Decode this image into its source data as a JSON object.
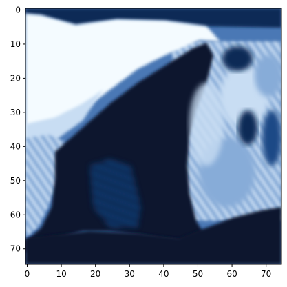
{
  "figure": {
    "type": "image",
    "colormap": "Blues_r",
    "colors": [
      "#08172e",
      "#0b2a57",
      "#1e4a86",
      "#4a78b5",
      "#87acd8",
      "#c8ddf3",
      "#f4fbff"
    ],
    "xlim": [
      -0.5,
      74.5
    ],
    "ylim": [
      74.5,
      -0.5
    ],
    "x_ticks": [
      0,
      10,
      20,
      30,
      40,
      50,
      60,
      70
    ],
    "y_ticks": [
      0,
      10,
      20,
      30,
      40,
      50,
      60,
      70
    ],
    "x_tick_labels": [
      "0",
      "10",
      "20",
      "30",
      "40",
      "50",
      "60",
      "70"
    ],
    "y_tick_labels": [
      "0",
      "10",
      "20",
      "30",
      "40",
      "50",
      "60",
      "70"
    ]
  }
}
